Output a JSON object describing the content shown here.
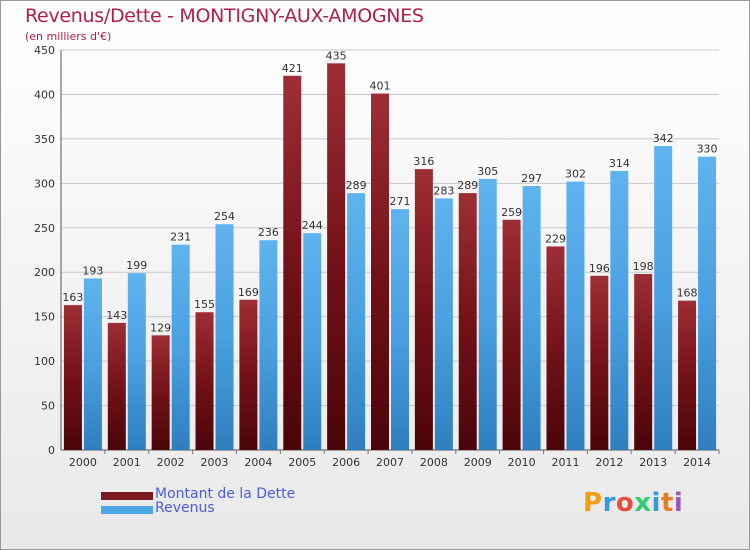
{
  "header": {
    "title": "Revenus/Dette - MONTIGNY-AUX-AMOGNES",
    "subtitle": "(en milliers d'€)"
  },
  "chart_data": {
    "type": "bar",
    "categories": [
      "2000",
      "2001",
      "2002",
      "2003",
      "2004",
      "2005",
      "2006",
      "2007",
      "2008",
      "2009",
      "2010",
      "2011",
      "2012",
      "2013",
      "2014"
    ],
    "series": [
      {
        "name": "Montant de la Dette",
        "color": "#7a1a20",
        "values": [
          163,
          143,
          129,
          155,
          169,
          421,
          435,
          401,
          316,
          289,
          259,
          229,
          196,
          198,
          168
        ],
        "labels": [
          "163",
          "143",
          "129",
          "155",
          "169",
          "421",
          "435",
          "401",
          "316",
          "289",
          "259",
          "229",
          "196",
          "198",
          "168"
        ]
      },
      {
        "name": "Revenus",
        "color": "#4ea6e6",
        "values": [
          193,
          199,
          231,
          254,
          236,
          244,
          289,
          271,
          283,
          305,
          297,
          302,
          314,
          342,
          330
        ],
        "labels": [
          "193",
          "199",
          "231",
          "254",
          "236",
          "244",
          "289",
          "271",
          "283",
          "305",
          "297",
          "302",
          "314",
          "342",
          "330"
        ]
      }
    ],
    "yticks": [
      "0",
      "50",
      "100",
      "150",
      "200",
      "250",
      "300",
      "350",
      "400",
      "450"
    ],
    "ylim": [
      0,
      450
    ],
    "grid": true,
    "legend_position": "bottom-left"
  },
  "legend": {
    "items": [
      {
        "label": "Montant de la Dette",
        "color": "#7a1a20"
      },
      {
        "label": "Revenus",
        "color": "#4ea6e6"
      }
    ]
  },
  "logo": {
    "letters": [
      "P",
      "r",
      "o",
      "x",
      "i",
      "t",
      "i"
    ],
    "colors": [
      "#f39c12",
      "#3498db",
      "#e74c3c",
      "#2ecc71",
      "#3498db",
      "#e67e22",
      "#9b59b6"
    ]
  }
}
